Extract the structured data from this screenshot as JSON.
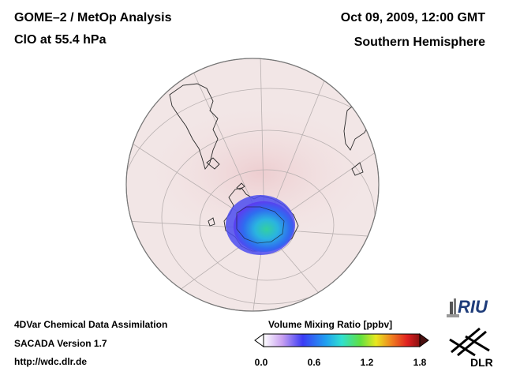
{
  "header": {
    "title": "GOME–2 / MetOp Analysis",
    "species": "ClO at 55.4 hPa",
    "datetime": "Oct 09, 2009, 12:00 GMT",
    "region": "Southern Hemisphere"
  },
  "footer": {
    "line1": "4DVar Chemical Data Assimilation",
    "line2": "SACADA Version 1.7",
    "url": "http://wdc.dlr.de"
  },
  "colorbar": {
    "title": "Volume Mixing Ratio [ppbv]",
    "ticks": [
      "0.0",
      "0.6",
      "1.2",
      "1.8"
    ],
    "range": [
      0.0,
      1.8
    ]
  },
  "logos": {
    "riu": "RIU",
    "dlr": "DLR"
  },
  "colors": {
    "background": "#ffffff",
    "globe_fill": "#f2e6e6",
    "enhanced_clo": "#2a8cf0",
    "peak_clo": "#2ec8a8"
  }
}
